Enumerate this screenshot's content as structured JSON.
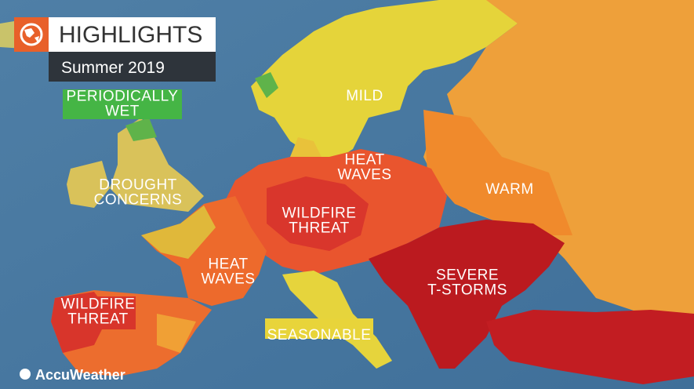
{
  "header": {
    "title": "HIGHLIGHTS",
    "subtitle": "Summer 2019"
  },
  "labels": [
    {
      "lines": [
        "PERIODICALLY",
        "WET"
      ]
    },
    {
      "lines": [
        "MILD"
      ]
    },
    {
      "lines": [
        "HEAT",
        "WAVES"
      ]
    },
    {
      "lines": [
        "WARM"
      ]
    },
    {
      "lines": [
        "DROUGHT",
        "CONCERNS"
      ]
    },
    {
      "lines": [
        "WILDFIRE",
        "THREAT"
      ]
    },
    {
      "lines": [
        "HEAT",
        "WAVES"
      ]
    },
    {
      "lines": [
        "SEVERE",
        "T-STORMS"
      ]
    },
    {
      "lines": [
        "WILDFIRE",
        "THREAT"
      ]
    },
    {
      "lines": [
        "SEASONABLE"
      ]
    }
  ],
  "footer": {
    "brand": "AccuWeather"
  }
}
